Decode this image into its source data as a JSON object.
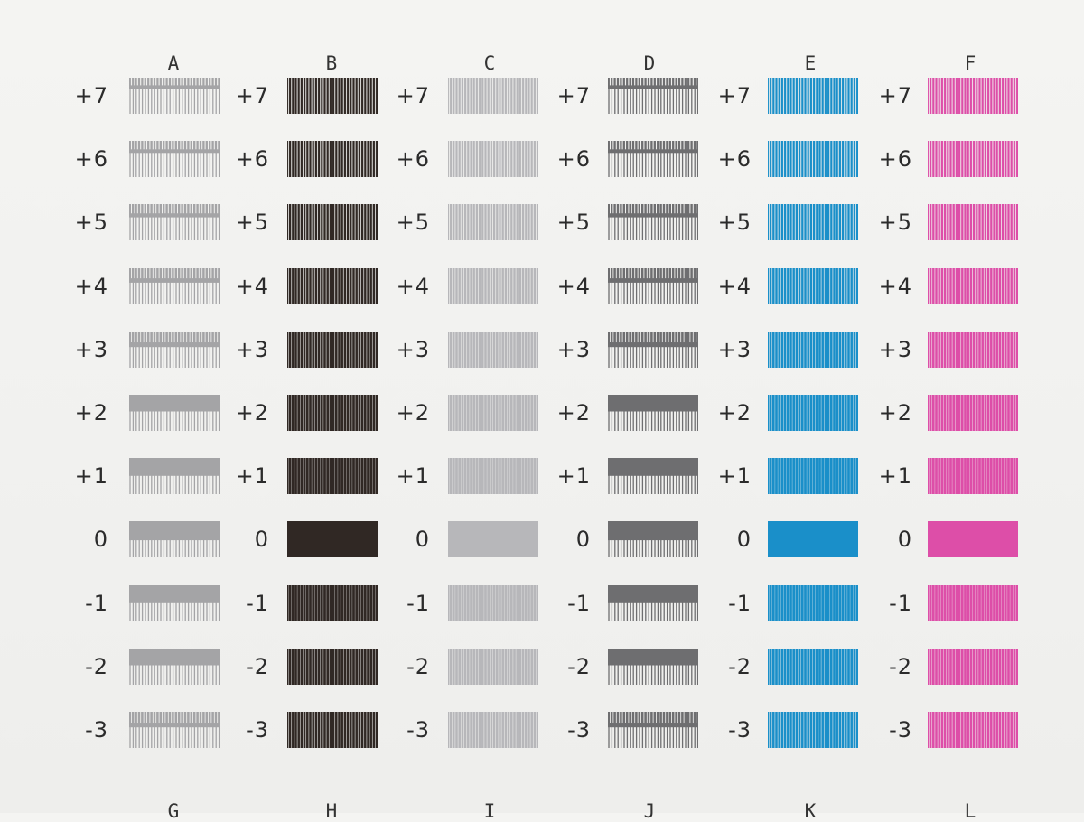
{
  "columns": [
    {
      "letter": "A",
      "color": "#a4a4a6",
      "style": "comb"
    },
    {
      "letter": "B",
      "color": "#302824",
      "style": "stripe"
    },
    {
      "letter": "C",
      "color": "#b7b7ba",
      "style": "stripe"
    },
    {
      "letter": "D",
      "color": "#6e6e70",
      "style": "comb"
    },
    {
      "letter": "E",
      "color": "#1a8fc9",
      "style": "stripe"
    },
    {
      "letter": "F",
      "color": "#dd4ea8",
      "style": "stripe"
    }
  ],
  "rows": [
    {
      "label": "+7",
      "value": 7
    },
    {
      "label": "+6",
      "value": 6
    },
    {
      "label": "+5",
      "value": 5
    },
    {
      "label": "+4",
      "value": 4
    },
    {
      "label": "+3",
      "value": 3
    },
    {
      "label": "+2",
      "value": 2
    },
    {
      "label": "+1",
      "value": 1
    },
    {
      "label": "0",
      "value": 0
    },
    {
      "label": "-1",
      "value": -1
    },
    {
      "label": "-2",
      "value": -2
    },
    {
      "label": "-3",
      "value": -3
    }
  ],
  "bottom_row_letters": [
    "G",
    "H",
    "I",
    "J",
    "K",
    "L"
  ]
}
